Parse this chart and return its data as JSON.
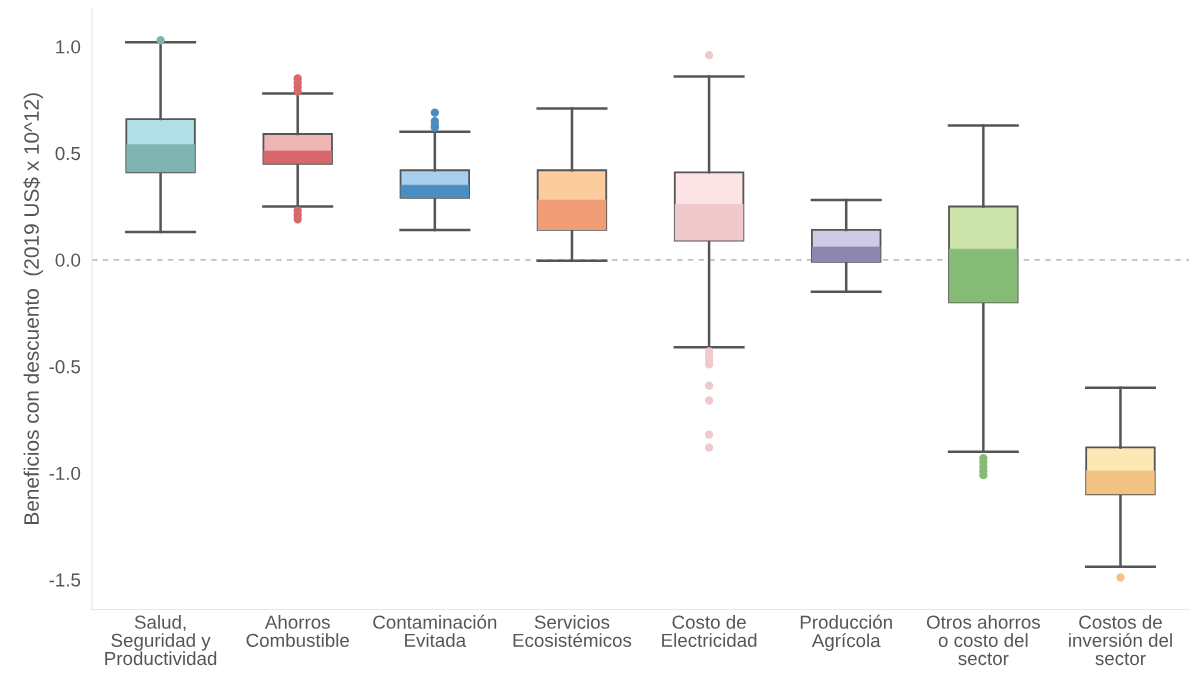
{
  "chart_data": {
    "type": "box",
    "ylabel": "Beneficios con descuento  (2019 US$ x 10^12)",
    "categories": [
      "Salud,\nSeguridad y\nProductividad",
      "Ahorros\nCombustible",
      "Contaminación\nEvitada",
      "Servicios\nEcosistémicos",
      "Costo de\nElectricidad",
      "Producción\nAgrícola",
      "Otros ahorros\no costo del\nsector",
      "Costos de\ninversión del\nsector"
    ],
    "boxes": [
      {
        "low": 0.13,
        "q1": 0.41,
        "median": 0.54,
        "q3": 0.66,
        "high": 1.02,
        "outliers": [
          1.03
        ]
      },
      {
        "low": 0.25,
        "q1": 0.45,
        "median": 0.51,
        "q3": 0.59,
        "high": 0.78,
        "outliers": [
          0.85,
          0.83,
          0.81,
          0.79,
          0.23,
          0.21,
          0.19
        ]
      },
      {
        "low": 0.14,
        "q1": 0.29,
        "median": 0.35,
        "q3": 0.42,
        "high": 0.6,
        "outliers": [
          0.69,
          0.65,
          0.63,
          0.62
        ]
      },
      {
        "low": -0.005,
        "q1": 0.14,
        "median": 0.28,
        "q3": 0.42,
        "high": 0.71
      },
      {
        "low": -0.41,
        "q1": 0.09,
        "median": 0.26,
        "q3": 0.41,
        "high": 0.86,
        "outliers": [
          0.96,
          -0.43,
          -0.45,
          -0.47,
          -0.49,
          -0.59,
          -0.66,
          -0.82,
          -0.88
        ]
      },
      {
        "low": -0.15,
        "q1": -0.01,
        "median": 0.06,
        "q3": 0.14,
        "high": 0.28
      },
      {
        "low": -0.9,
        "q1": -0.2,
        "median": 0.05,
        "q3": 0.25,
        "high": 0.63,
        "outliers": [
          -0.93,
          -0.95,
          -0.97,
          -0.99,
          -1.01
        ]
      },
      {
        "low": -1.44,
        "q1": -1.1,
        "median": -0.99,
        "q3": -0.88,
        "high": -0.6,
        "outliers": [
          -1.49
        ]
      }
    ],
    "colors": [
      [
        "#b0e0e6",
        "#7fb3b0"
      ],
      [
        "#f0b5b5",
        "#d9686c"
      ],
      [
        "#a8d0ee",
        "#4a8ec0"
      ],
      [
        "#fccb9e",
        "#f09c76"
      ],
      [
        "#fbe3e6",
        "#f0c9cd"
      ],
      [
        "#cfcbe6",
        "#8c87b0"
      ],
      [
        "#cde5ad",
        "#85bb75"
      ],
      [
        "#fbe8b5",
        "#f2c484"
      ]
    ],
    "ylim": [
      -1.64,
      1.18
    ],
    "yticks": [
      {
        "value": 1.0,
        "label": "1.0"
      },
      {
        "value": 0.5,
        "label": "0.5"
      },
      {
        "value": 0.0,
        "label": "0.0"
      },
      {
        "value": -0.5,
        "label": "-0.5"
      },
      {
        "value": -1.0,
        "label": "-1.0"
      },
      {
        "value": -1.5,
        "label": "-1.5"
      }
    ],
    "ref_lines": [
      {
        "axis": "y",
        "value": 0,
        "color": "#c0c0c0",
        "line_style": "dashed"
      }
    ],
    "grid": false,
    "legend": false
  }
}
